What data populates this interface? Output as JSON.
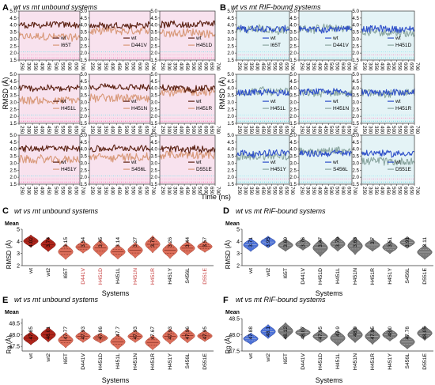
{
  "panels": [
    {
      "letter": "A",
      "title": "wt vs mt unbound systems"
    },
    {
      "letter": "B",
      "title": "wt vs mt RIF-bound systems"
    },
    {
      "letter": "C",
      "title": "wt vs mt unbound systems"
    },
    {
      "letter": "D",
      "title": "wt vs mt RIF-bound systems"
    },
    {
      "letter": "E",
      "title": "wt vs mt unbound systems"
    },
    {
      "letter": "F",
      "title": "wt vs mt RIF-bound systems"
    }
  ],
  "mean_label": "Mean",
  "colors": {
    "wt_unbound": "#5a1f10",
    "mt_unbound": "#d89878",
    "wt_bound": "#2e4fc9",
    "mt_bound": "#8aa6a0",
    "violin_wt_unbound": "#b0261c",
    "violin_mt_unbound": "#dc6e5a",
    "violin_wt_bound": "#4a70d8",
    "violin_mt_bound": "#777777",
    "bg_a": "#f8e2ee",
    "bg_b": "#e4f3f6"
  },
  "chart_data": [
    {
      "panel": "A",
      "type": "line",
      "title": "wt vs mt unbound systems",
      "xlabel": "Time (ns)",
      "ylabel": "RMSD (Å)",
      "xlim": [
        250,
        700
      ],
      "ylim": [
        1.5,
        5.0
      ],
      "xticks": [
        250,
        300,
        350,
        400,
        450,
        500,
        550,
        600,
        650,
        700
      ],
      "yticks": [
        1.5,
        2.0,
        2.5,
        3.0,
        3.5,
        4.0,
        4.5,
        5.0
      ],
      "series": [
        {
          "name": "wt",
          "mean": 4.02
        },
        {
          "name": "I65T",
          "mean": 3.15
        },
        {
          "name": "D441V",
          "mean": 3.54
        },
        {
          "name": "H451D",
          "mean": 3.45
        },
        {
          "name": "H451L",
          "mean": 3.14
        },
        {
          "name": "H451N",
          "mean": 3.27
        },
        {
          "name": "H451R",
          "mean": 3.76
        },
        {
          "name": "H451Y",
          "mean": 3.26
        },
        {
          "name": "S456L",
          "mean": 3.44
        },
        {
          "name": "D551E",
          "mean": 3.57
        }
      ]
    },
    {
      "panel": "B",
      "type": "line",
      "title": "wt vs mt RIF-bound systems",
      "xlabel": "Time (ns)",
      "ylabel": "RMSD (Å)",
      "xlim": [
        250,
        700
      ],
      "ylim": [
        1.5,
        5.0
      ],
      "xticks": [
        250,
        300,
        350,
        400,
        450,
        500,
        550,
        600,
        650,
        700
      ],
      "yticks": [
        1.5,
        2.0,
        2.5,
        3.0,
        3.5,
        4.0,
        4.5,
        5.0
      ],
      "series": [
        {
          "name": "wt",
          "mean": 3.71
        },
        {
          "name": "I65T",
          "mean": 3.69
        },
        {
          "name": "D441V",
          "mean": 3.76
        },
        {
          "name": "H451D",
          "mean": 3.47
        },
        {
          "name": "H451L",
          "mean": 3.79
        },
        {
          "name": "H451N",
          "mean": 3.63
        },
        {
          "name": "H451R",
          "mean": 3.7
        },
        {
          "name": "H451Y",
          "mean": 3.51
        },
        {
          "name": "S456L",
          "mean": 3.91
        },
        {
          "name": "D551E",
          "mean": 3.11
        }
      ]
    },
    {
      "panel": "C",
      "type": "violin",
      "title": "wt vs mt unbound systems",
      "xlabel": "Systems",
      "ylabel": "RMSD (Å)",
      "ylim": [
        2,
        5
      ],
      "yticks": [
        2,
        3,
        4,
        5
      ],
      "categories": [
        "wt",
        "wt2",
        "I65T",
        "D441V",
        "H451D",
        "H451L",
        "H451N",
        "H451R",
        "H451Y",
        "S456L",
        "D551E"
      ],
      "means": [
        "4.02",
        "3.74",
        "3.15",
        "3.54",
        "3.45",
        "3.14",
        "3.27",
        "3.76",
        "3.26",
        "3.44",
        "3.57"
      ]
    },
    {
      "panel": "D",
      "type": "violin",
      "title": "wt vs mt RIF-bound systems",
      "xlabel": "Systems",
      "ylabel": "RMSD (Å)",
      "ylim": [
        2,
        5
      ],
      "yticks": [
        2,
        3,
        4,
        5
      ],
      "categories": [
        "wt",
        "wt2",
        "I65T",
        "D441V",
        "H451D",
        "H451L",
        "H451N",
        "H451R",
        "H451Y",
        "S456L",
        "D551E"
      ],
      "means": [
        "3.71",
        "3.95",
        "3.69",
        "3.76",
        "3.47",
        "3.79",
        "3.63",
        "3.7",
        "3.51",
        "3.91",
        "3.11"
      ]
    },
    {
      "panel": "E",
      "type": "violin",
      "title": "wt vs mt unbound systems",
      "xlabel": "Systems",
      "ylabel": "Rg (Å)",
      "ylim": [
        47.3,
        48.7
      ],
      "yticks": [
        47.5,
        48.0,
        48.5
      ],
      "categories": [
        "wt",
        "wt2",
        "I65T",
        "D441V",
        "H451D",
        "H451L",
        "H451N",
        "H451R",
        "H451Y",
        "S456L",
        "D551E"
      ],
      "means": [
        "47.85",
        "48.01",
        "47.77",
        "47.93",
        "47.86",
        "47.7",
        "47.93",
        "47.67",
        "47.93",
        "47.96",
        "47.95"
      ]
    },
    {
      "panel": "F",
      "type": "violin",
      "title": "wt vs mt RIF-bound systems",
      "xlabel": "Systems",
      "ylabel": "Rg (Å)",
      "ylim": [
        47.5,
        48.5
      ],
      "yticks": [
        47.5,
        48.0,
        48.5
      ],
      "categories": [
        "wt",
        "wt2",
        "I65T",
        "D441V",
        "H451D",
        "H451L",
        "H451N",
        "H451R",
        "H451Y",
        "S456L",
        "D551E"
      ],
      "means": [
        "47.88",
        "48.1",
        "48.12",
        "48.07",
        "47.95",
        "47.9",
        "48.0",
        "47.95",
        "48.0",
        "47.78",
        "48.05"
      ]
    }
  ]
}
